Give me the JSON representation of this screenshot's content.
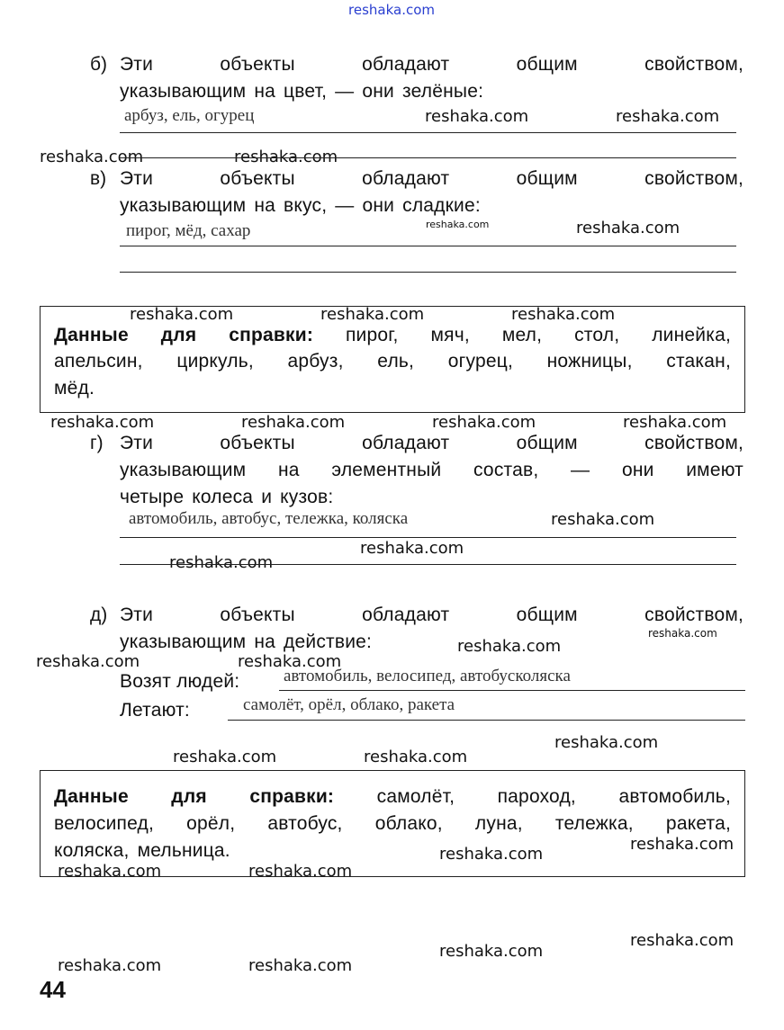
{
  "sections": {
    "b": {
      "label": "б)",
      "line1": "Эти объекты обладают общим свойством,",
      "line2": "указывающим на цвет, — они зелёные:",
      "answer": "арбуз, ель, огурец"
    },
    "v": {
      "label": "в)",
      "line1": "Эти объекты обладают общим свойством,",
      "line2": "указывающим на вкус, — они сладкие:",
      "answer": "пирог, мёд, сахар"
    },
    "g": {
      "label": "г)",
      "line1": "Эти объекты обладают общим свойством,",
      "line2": "указывающим на элементный состав, — они имеют",
      "line3": "четыре колеса и кузов:",
      "answer": "автомобиль, автобус, тележка, коляска"
    },
    "d": {
      "label": "д)",
      "line1": "Эти объекты обладают общим свойством,",
      "line2": "указывающим на действие:",
      "carry_label": "Возят людей:",
      "carry_answer": "автомобиль, велосипед, автобусколяска",
      "fly_label": "Летают:",
      "fly_answer": "самолёт, орёл, облако, ракета"
    }
  },
  "reference1": {
    "title": "Данные для справки:",
    "line1": "пирог, мяч, мел, стол, линейка,",
    "line2": "апельсин, циркуль, арбуз, ель, огурец, ножницы, стакан,",
    "line3": "мёд."
  },
  "reference2": {
    "title": "Данные для справки:",
    "line1": "самолёт, пароход, автомобиль,",
    "line2": "велосипед, орёл, автобус, облако, луна, тележка, ракета,",
    "line3": "коляска, мельница."
  },
  "page_number": "44",
  "watermark": "reshaka.com",
  "watermark_color": "#2a3fd0"
}
